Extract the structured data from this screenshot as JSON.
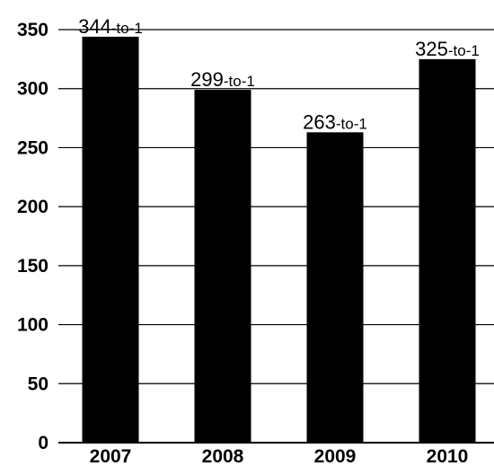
{
  "chart_data": {
    "type": "bar",
    "title": "",
    "xlabel": "",
    "ylabel": "",
    "categories": [
      "2007",
      "2008",
      "2009",
      "2010"
    ],
    "values": [
      344,
      299,
      263,
      325
    ],
    "data_labels": [
      {
        "number": "344",
        "suffix": "-to-1"
      },
      {
        "number": "299",
        "suffix": "-to-1"
      },
      {
        "number": "263",
        "suffix": "-to-1"
      },
      {
        "number": "325",
        "suffix": "-to-1"
      }
    ],
    "ylim": [
      0,
      350
    ],
    "yticks": [
      "0",
      "50",
      "100",
      "150",
      "200",
      "250",
      "300",
      "350"
    ],
    "grid": true,
    "bar_color": "#000000",
    "grid_color": "#000000"
  }
}
